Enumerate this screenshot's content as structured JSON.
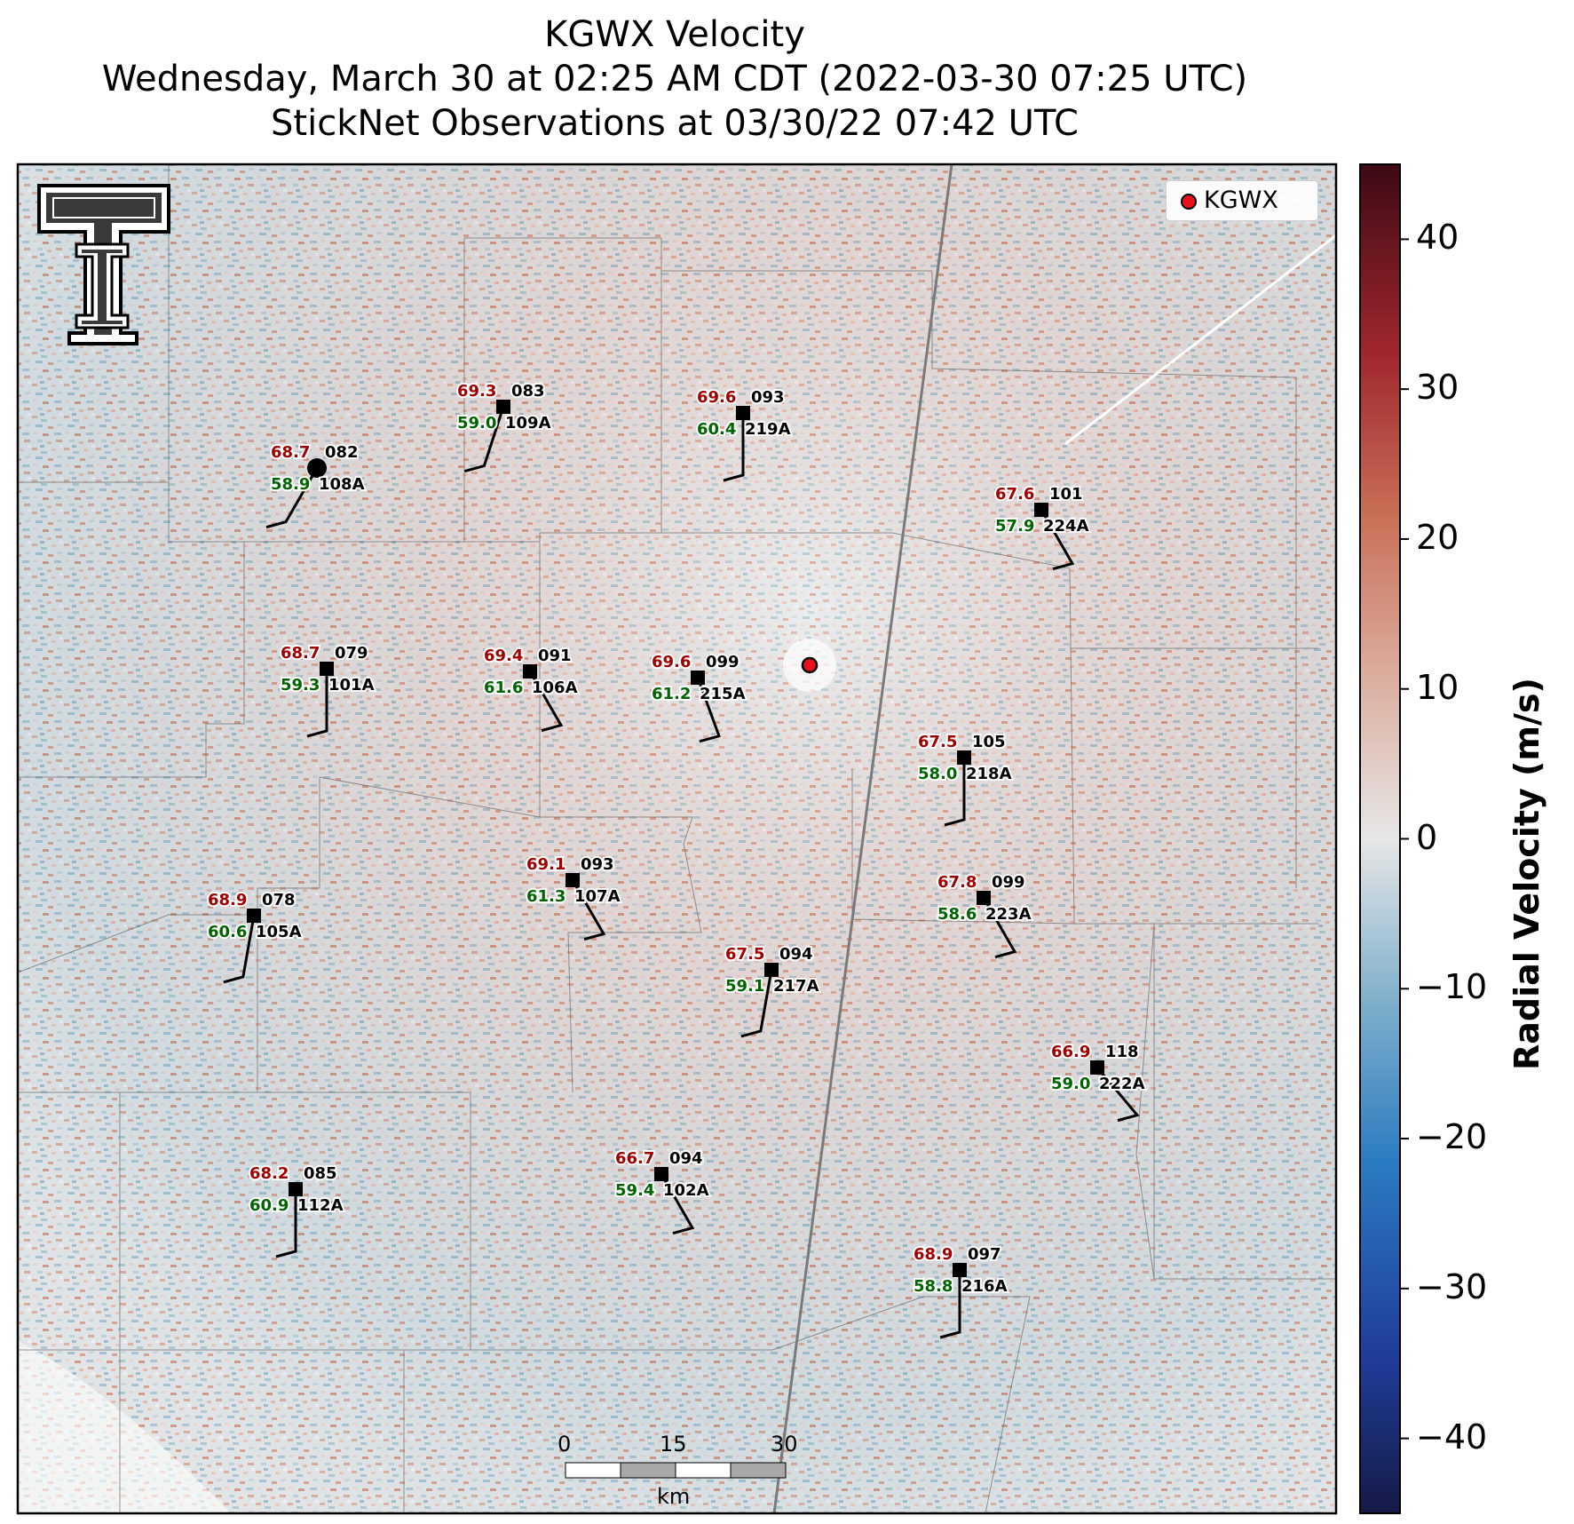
{
  "title": {
    "line1": "KGWX Velocity",
    "line2": "Wednesday, March 30 at 02:25 AM CDT (2022-03-30 07:25 UTC)",
    "line3": "StickNet Observations at 03/30/22 07:42 UTC"
  },
  "legend": {
    "label": "KGWX",
    "marker_color": "#e8101a"
  },
  "colorbar": {
    "title": "Radial Velocity (m/s)",
    "ticks": [
      "40",
      "30",
      "20",
      "10",
      "0",
      "−10",
      "−20",
      "−30",
      "−40"
    ],
    "range": [
      -45,
      45
    ],
    "colors": [
      "#151a45",
      "#1f3e9c",
      "#2b7bc1",
      "#7fb0cc",
      "#d8dde1",
      "#e8cbc1",
      "#cc8a72",
      "#b3422c",
      "#8a1228",
      "#3d0a14"
    ]
  },
  "scale_bar": {
    "labels": [
      "0",
      "15",
      "30"
    ],
    "unit": "km"
  },
  "logo": {
    "name": "Texas Tech double-T",
    "mark": "®"
  },
  "stations": [
    {
      "id": "109A",
      "temp": "69.3",
      "dew": "59.0",
      "dir": "083"
    },
    {
      "id": "219A",
      "temp": "69.6",
      "dew": "60.4",
      "dir": "093"
    },
    {
      "id": "108A",
      "temp": "68.7",
      "dew": "58.9",
      "dir": "082"
    },
    {
      "id": "224A",
      "temp": "67.6",
      "dew": "57.9",
      "dir": "101"
    },
    {
      "id": "101A",
      "temp": "68.7",
      "dew": "59.3",
      "dir": "079"
    },
    {
      "id": "106A",
      "temp": "69.4",
      "dew": "61.6",
      "dir": "091"
    },
    {
      "id": "215A",
      "temp": "69.6",
      "dew": "61.2",
      "dir": "099"
    },
    {
      "id": "218A",
      "temp": "67.5",
      "dew": "58.0",
      "dir": "105"
    },
    {
      "id": "107A",
      "temp": "69.1",
      "dew": "61.3",
      "dir": "093"
    },
    {
      "id": "223A",
      "temp": "67.8",
      "dew": "58.6",
      "dir": "099"
    },
    {
      "id": "105A",
      "temp": "68.9",
      "dew": "60.6",
      "dir": "078"
    },
    {
      "id": "217A",
      "temp": "67.5",
      "dew": "59.1",
      "dir": "094"
    },
    {
      "id": "222A",
      "temp": "66.9",
      "dew": "59.0",
      "dir": "118"
    },
    {
      "id": "112A",
      "temp": "68.2",
      "dew": "60.9",
      "dir": "085"
    },
    {
      "id": "102A",
      "temp": "66.7",
      "dew": "59.4",
      "dir": "094"
    },
    {
      "id": "216A",
      "temp": "68.9",
      "dew": "58.8",
      "dir": "097"
    }
  ]
}
